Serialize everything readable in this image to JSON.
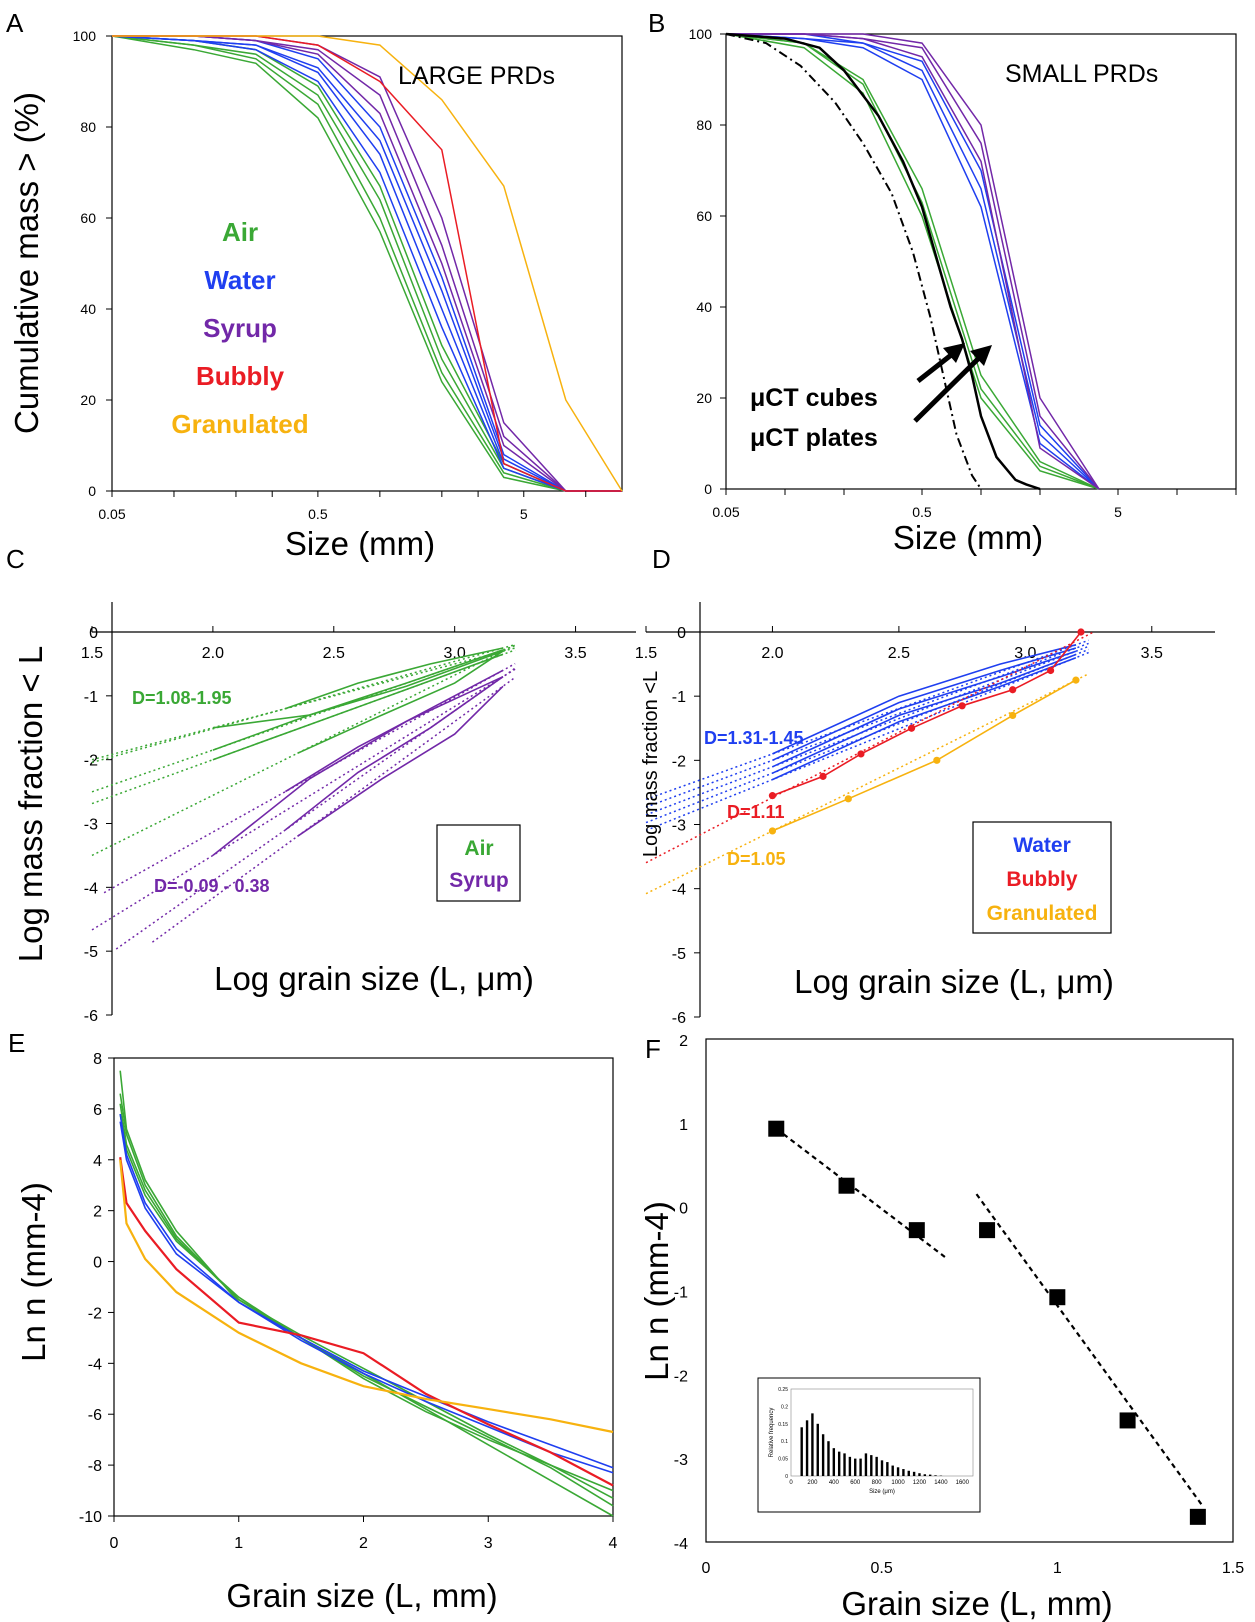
{
  "colors": {
    "air": "#3aa835",
    "water": "#1f3ff0",
    "syrup": "#7228a8",
    "bubbly": "#ea1c24",
    "granulated": "#f7b20f",
    "black": "#000000"
  },
  "chart_data": [
    {
      "panel": "A",
      "type": "line",
      "title": "LARGE PRDs",
      "xlabel": "Size (mm)",
      "ylabel": "Cumulative mass > (%)",
      "xscale": "log",
      "xlim": [
        0.05,
        15
      ],
      "ylim": [
        0,
        100
      ],
      "xticks": [
        "0.05",
        "0.5",
        "5"
      ],
      "yticks": [
        "0",
        "20",
        "40",
        "60",
        "80",
        "100"
      ],
      "legend": [
        "Air",
        "Water",
        "Syrup",
        "Bubbly",
        "Granulated"
      ],
      "x": [
        0.05,
        0.125,
        0.25,
        0.5,
        1,
        2,
        4,
        8,
        16
      ],
      "series": [
        {
          "group": "air",
          "values": [
            100,
            97,
            94,
            82,
            57,
            24,
            3,
            0,
            0
          ]
        },
        {
          "group": "air",
          "values": [
            100,
            98,
            95,
            85,
            60,
            26,
            4,
            0,
            0
          ]
        },
        {
          "group": "air",
          "values": [
            100,
            98,
            96,
            87,
            64,
            29,
            5,
            0,
            0
          ]
        },
        {
          "group": "air",
          "values": [
            100,
            99,
            97,
            89,
            67,
            32,
            6,
            0,
            0
          ]
        },
        {
          "group": "water",
          "values": [
            100,
            99,
            97,
            90,
            70,
            36,
            5,
            0,
            0
          ]
        },
        {
          "group": "water",
          "values": [
            100,
            99,
            98,
            92,
            74,
            40,
            6,
            0,
            0
          ]
        },
        {
          "group": "water",
          "values": [
            100,
            99,
            98,
            93,
            77,
            44,
            7,
            0,
            0
          ]
        },
        {
          "group": "water",
          "values": [
            100,
            100,
            99,
            95,
            80,
            47,
            8,
            0,
            0
          ]
        },
        {
          "group": "syrup",
          "values": [
            100,
            100,
            99,
            96,
            83,
            50,
            10,
            0,
            0
          ]
        },
        {
          "group": "syrup",
          "values": [
            100,
            100,
            99,
            97,
            87,
            54,
            12,
            0,
            0
          ]
        },
        {
          "group": "syrup",
          "values": [
            100,
            100,
            100,
            98,
            91,
            60,
            15,
            0,
            0
          ]
        },
        {
          "group": "bubbly",
          "values": [
            100,
            100,
            100,
            98,
            90,
            75,
            6,
            0,
            0
          ]
        },
        {
          "group": "granulated",
          "values": [
            100,
            100,
            100,
            100,
            98,
            86,
            67,
            20,
            0
          ]
        }
      ]
    },
    {
      "panel": "B",
      "type": "line",
      "title": "SMALL PRDs",
      "xlabel": "Size (mm)",
      "ylabel": "",
      "xscale": "log",
      "xlim": [
        0.05,
        20
      ],
      "ylim": [
        0,
        100
      ],
      "xticks": [
        "0.05",
        "0.5",
        "5"
      ],
      "yticks": [
        "0",
        "20",
        "40",
        "60",
        "80",
        "100"
      ],
      "annotations": [
        "μCT cubes",
        "μCT plates"
      ],
      "x": [
        0.05,
        0.125,
        0.25,
        0.5,
        1,
        2,
        4
      ],
      "series": [
        {
          "group": "air",
          "values": [
            100,
            97,
            87,
            60,
            20,
            4,
            0
          ]
        },
        {
          "group": "air",
          "values": [
            100,
            98,
            89,
            63,
            22,
            5,
            0
          ]
        },
        {
          "group": "air",
          "values": [
            100,
            98,
            90,
            66,
            25,
            6,
            0
          ]
        },
        {
          "group": "water",
          "values": [
            100,
            99,
            97,
            90,
            62,
            10,
            0
          ]
        },
        {
          "group": "water",
          "values": [
            100,
            99,
            98,
            92,
            66,
            12,
            0
          ]
        },
        {
          "group": "water",
          "values": [
            100,
            100,
            98,
            94,
            70,
            14,
            0
          ]
        },
        {
          "group": "syrup",
          "values": [
            100,
            100,
            99,
            95,
            72,
            9,
            0
          ]
        },
        {
          "group": "syrup",
          "values": [
            100,
            100,
            99,
            97,
            76,
            16,
            0
          ]
        },
        {
          "group": "syrup",
          "values": [
            100,
            100,
            100,
            98,
            80,
            20,
            0
          ]
        }
      ],
      "ct_plates": {
        "x": [
          0.05,
          0.1,
          0.15,
          0.2,
          0.3,
          0.4,
          0.5,
          0.6,
          0.7,
          0.8,
          0.9,
          1.0,
          1.2,
          1.5,
          1.7,
          2.0
        ],
        "values": [
          100,
          99,
          97,
          92,
          82,
          72,
          62,
          50,
          40,
          33,
          25,
          16,
          7,
          2,
          1,
          0
        ]
      },
      "ct_cubes": {
        "x": [
          0.05,
          0.08,
          0.12,
          0.18,
          0.25,
          0.35,
          0.45,
          0.55,
          0.65,
          0.75,
          0.9,
          1.0
        ],
        "values": [
          100,
          98,
          93,
          85,
          76,
          65,
          52,
          38,
          24,
          12,
          3,
          0
        ]
      }
    },
    {
      "panel": "C",
      "type": "line",
      "xlabel": "Log grain size (L, μm)",
      "ylabel": "Log mass fraction < L",
      "xlim": [
        1.5,
        3.75
      ],
      "ylim": [
        -6,
        0
      ],
      "xticks": [
        "1.5",
        "2.0",
        "2.5",
        "3.0",
        "3.5"
      ],
      "yticks": [
        "0",
        "-1",
        "-2",
        "-3",
        "-4",
        "-5",
        "-6"
      ],
      "legend": [
        "Air",
        "Syrup"
      ],
      "annotations": [
        "D=1.08-1.95",
        "D=-0.09 - 0.38"
      ],
      "series": [
        {
          "group": "air",
          "x": [
            2.0,
            2.4,
            2.8,
            3.2
          ],
          "values": [
            -1.5,
            -1.3,
            -0.85,
            -0.3
          ]
        },
        {
          "group": "air",
          "x": [
            2.0,
            2.4,
            2.8,
            3.2
          ],
          "values": [
            -1.85,
            -1.3,
            -0.8,
            -0.28
          ]
        },
        {
          "group": "air",
          "x": [
            2.0,
            2.4,
            2.8,
            3.2
          ],
          "values": [
            -2.0,
            -1.45,
            -0.9,
            -0.35
          ]
        },
        {
          "group": "air",
          "x": [
            2.35,
            2.7,
            3.0,
            3.2
          ],
          "values": [
            -1.9,
            -1.3,
            -0.8,
            -0.3
          ]
        },
        {
          "group": "air",
          "x": [
            2.3,
            2.6,
            2.9,
            3.2
          ],
          "values": [
            -1.2,
            -0.8,
            -0.5,
            -0.25
          ]
        },
        {
          "group": "syrup",
          "x": [
            2.0,
            2.4,
            2.8,
            3.2
          ],
          "values": [
            -3.5,
            -2.3,
            -1.4,
            -0.7
          ]
        },
        {
          "group": "syrup",
          "x": [
            2.3,
            2.6,
            2.9,
            3.2
          ],
          "values": [
            -3.1,
            -2.2,
            -1.5,
            -0.7
          ]
        },
        {
          "group": "syrup",
          "x": [
            2.35,
            2.7,
            3.0,
            3.2
          ],
          "values": [
            -3.2,
            -2.3,
            -1.6,
            -0.85
          ]
        },
        {
          "group": "syrup",
          "x": [
            2.3,
            2.6,
            2.9,
            3.2
          ],
          "values": [
            -2.5,
            -1.8,
            -1.2,
            -0.6
          ]
        }
      ]
    },
    {
      "panel": "D",
      "type": "line",
      "xlabel": "Log grain size (L, μm)",
      "ylabel": "Log mass fraction <L",
      "xlim": [
        1.5,
        3.75
      ],
      "ylim": [
        -6,
        0
      ],
      "xticks": [
        "1.5",
        "2.0",
        "2.5",
        "3.0",
        "3.5"
      ],
      "yticks": [
        "0",
        "-1",
        "-2",
        "-3",
        "-4",
        "-5",
        "-6"
      ],
      "legend": [
        "Water",
        "Bubbly",
        "Granulated"
      ],
      "annotations": [
        "D=1.31-1.45",
        "D=1.11",
        "D=1.05"
      ],
      "series": [
        {
          "group": "water",
          "x": [
            2.0,
            2.5,
            2.9,
            3.2
          ],
          "values": [
            -2.3,
            -1.4,
            -0.85,
            -0.4
          ]
        },
        {
          "group": "water",
          "x": [
            2.0,
            2.5,
            2.9,
            3.2
          ],
          "values": [
            -2.2,
            -1.3,
            -0.8,
            -0.35
          ]
        },
        {
          "group": "water",
          "x": [
            2.0,
            2.5,
            2.9,
            3.2
          ],
          "values": [
            -2.1,
            -1.2,
            -0.7,
            -0.3
          ]
        },
        {
          "group": "water",
          "x": [
            2.0,
            2.5,
            2.9,
            3.2
          ],
          "values": [
            -2.0,
            -1.1,
            -0.6,
            -0.25
          ]
        },
        {
          "group": "water",
          "x": [
            2.0,
            2.5,
            2.9,
            3.2
          ],
          "values": [
            -1.9,
            -1.0,
            -0.5,
            -0.2
          ]
        },
        {
          "group": "bubbly",
          "x": [
            2.0,
            2.2,
            2.35,
            2.55,
            2.75,
            2.95,
            3.1,
            3.22
          ],
          "values": [
            -2.55,
            -2.25,
            -1.9,
            -1.5,
            -1.15,
            -0.9,
            -0.6,
            0.0
          ]
        },
        {
          "group": "granulated",
          "x": [
            2.0,
            2.3,
            2.65,
            2.95,
            3.2
          ],
          "values": [
            -3.1,
            -2.6,
            -2.0,
            -1.3,
            -0.75
          ]
        }
      ]
    },
    {
      "panel": "E",
      "type": "line",
      "xlabel": "Grain size (L, mm)",
      "ylabel": "Ln n (mm-4)",
      "xlim": [
        0,
        4
      ],
      "ylim": [
        -10,
        8
      ],
      "xticks": [
        "0",
        "1",
        "2",
        "3",
        "4"
      ],
      "yticks": [
        "8",
        "6",
        "4",
        "2",
        "0",
        "-2",
        "-4",
        "-6",
        "-8",
        "-10"
      ],
      "x": [
        0.05,
        0.1,
        0.25,
        0.5,
        1,
        1.5,
        2,
        2.5,
        3,
        3.5,
        4
      ],
      "series": [
        {
          "group": "air",
          "values": [
            7.5,
            5.2,
            3.2,
            1.2,
            -1.6,
            -3.0,
            -4.4,
            -5.8,
            -7.2,
            -8.6,
            -10.0
          ]
        },
        {
          "group": "air",
          "values": [
            6.6,
            5.0,
            3.0,
            1.0,
            -1.5,
            -2.9,
            -4.2,
            -5.5,
            -6.8,
            -8.0,
            -9.3
          ]
        },
        {
          "group": "air",
          "values": [
            6.2,
            4.6,
            2.8,
            0.9,
            -1.5,
            -3.0,
            -4.5,
            -5.7,
            -6.9,
            -8.1,
            -9.6
          ]
        },
        {
          "group": "air",
          "values": [
            5.8,
            4.4,
            2.6,
            0.8,
            -1.4,
            -3.0,
            -4.6,
            -5.9,
            -7.0,
            -8.0,
            -9.0
          ]
        },
        {
          "group": "water",
          "values": [
            5.8,
            4.2,
            2.3,
            0.5,
            -1.6,
            -3.0,
            -4.3,
            -5.3,
            -6.3,
            -7.2,
            -8.1
          ]
        },
        {
          "group": "water",
          "values": [
            5.5,
            4.0,
            2.1,
            0.3,
            -1.6,
            -3.1,
            -4.4,
            -5.5,
            -6.5,
            -7.5,
            -8.3
          ]
        },
        {
          "group": "bubbly",
          "values": [
            4.1,
            2.3,
            1.2,
            -0.3,
            -2.4,
            -2.9,
            -3.6,
            -5.2,
            -6.4,
            -7.5,
            -8.8
          ]
        },
        {
          "group": "granulated",
          "values": [
            4.0,
            1.5,
            0.1,
            -1.2,
            -2.8,
            -4.0,
            -4.9,
            -5.4,
            -5.8,
            -6.2,
            -6.7
          ]
        }
      ]
    },
    {
      "panel": "F",
      "type": "scatter",
      "xlabel": "Grain size (L, mm)",
      "ylabel": "Ln n (mm-4)",
      "xlim": [
        0,
        1.5
      ],
      "ylim": [
        -4,
        2
      ],
      "xticks": [
        "0",
        "0.5",
        "1",
        "1.5"
      ],
      "yticks": [
        "2",
        "1",
        "0",
        "-1",
        "-2",
        "-3",
        "-4"
      ],
      "points": {
        "x": [
          0.2,
          0.4,
          0.6,
          0.8,
          1.0,
          1.2,
          1.4
        ],
        "y": [
          0.93,
          0.25,
          -0.28,
          -0.28,
          -1.08,
          -2.55,
          -3.7
        ]
      },
      "fits": [
        {
          "x": [
            0.2,
            0.68
          ],
          "y": [
            0.93,
            -0.6
          ]
        },
        {
          "x": [
            0.77,
            1.41
          ],
          "y": [
            0.15,
            -3.55
          ]
        }
      ],
      "inset": {
        "type": "bar",
        "xlabel": "Size (μm)",
        "ylabel": "Relative frequency",
        "ylim": [
          0,
          0.25
        ],
        "xticks": [
          "0",
          "200",
          "400",
          "600",
          "800",
          "1000",
          "1200",
          "1400",
          "1600"
        ],
        "yticks": [
          "0",
          "0.05",
          "0.1",
          "0.15",
          "0.2",
          "0.25"
        ],
        "x": [
          100,
          150,
          200,
          250,
          300,
          350,
          400,
          450,
          500,
          550,
          600,
          650,
          700,
          750,
          800,
          850,
          900,
          950,
          1000,
          1050,
          1100,
          1150,
          1200,
          1250,
          1300,
          1350,
          1400
        ],
        "values": [
          0.14,
          0.16,
          0.18,
          0.15,
          0.12,
          0.1,
          0.08,
          0.07,
          0.065,
          0.055,
          0.05,
          0.05,
          0.065,
          0.06,
          0.055,
          0.045,
          0.04,
          0.03,
          0.025,
          0.02,
          0.015,
          0.012,
          0.008,
          0.005,
          0.004,
          0.002,
          0.001
        ]
      }
    }
  ],
  "panel_letters": [
    "A",
    "B",
    "C",
    "D",
    "E",
    "F"
  ]
}
